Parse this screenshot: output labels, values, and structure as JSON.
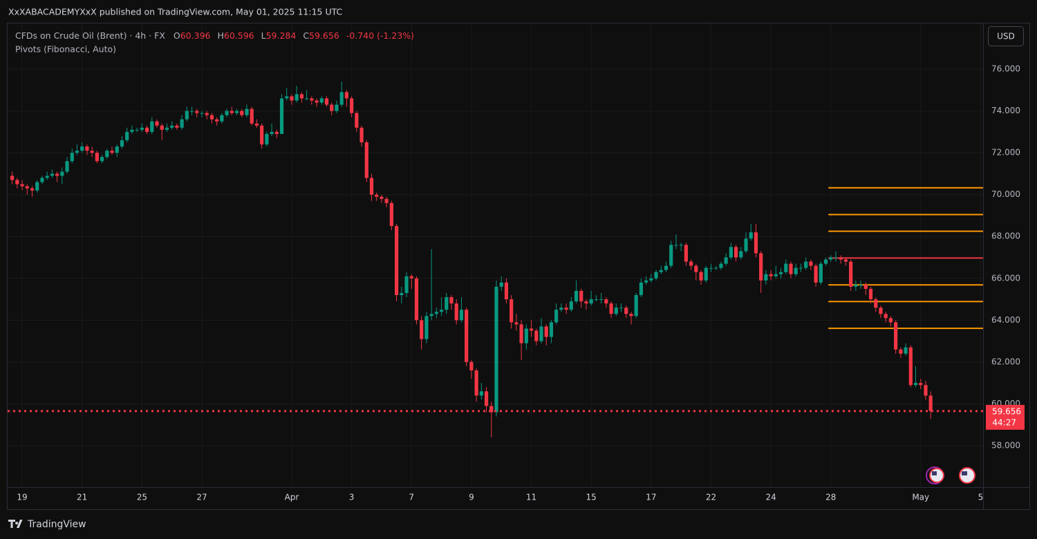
{
  "page": {
    "published": "XxXABACADEMYXxX published on TradingView.com, May 01, 2025 11:15 UTC",
    "brand": "TradingView",
    "currency_button": "USD"
  },
  "chart_data": {
    "type": "candlestick",
    "symbol": "CFDs on Crude Oil (Brent) · 4h · FX",
    "ohlc_labels": {
      "open": "O",
      "high": "H",
      "low": "L",
      "close": "C"
    },
    "change": "-0.740 (-1.23%)",
    "countdown": "44:27",
    "up_color": "#089981",
    "down_color": "#f23645",
    "grid": true,
    "ylim": [
      56.02,
      78.18
    ],
    "yticks": [
      {
        "value": 58,
        "label": "58.000"
      },
      {
        "value": 60,
        "label": "60.000"
      },
      {
        "value": 62,
        "label": "62.000"
      },
      {
        "value": 64,
        "label": "64.000"
      },
      {
        "value": 66,
        "label": "66.000"
      },
      {
        "value": 68,
        "label": "68.000"
      },
      {
        "value": 70,
        "label": "70.000"
      },
      {
        "value": 72,
        "label": "72.000"
      },
      {
        "value": 74,
        "label": "74.000"
      },
      {
        "value": 76,
        "label": "76.000"
      }
    ],
    "categories": [
      null,
      null,
      "19",
      null,
      null,
      null,
      null,
      null,
      null,
      null,
      null,
      null,
      null,
      null,
      "21",
      null,
      null,
      null,
      null,
      null,
      null,
      null,
      null,
      null,
      null,
      null,
      "25",
      null,
      null,
      null,
      null,
      null,
      null,
      null,
      null,
      null,
      null,
      null,
      "27",
      null,
      null,
      null,
      null,
      null,
      null,
      null,
      null,
      null,
      null,
      null,
      null,
      null,
      null,
      null,
      null,
      null,
      "Apr",
      null,
      null,
      null,
      null,
      null,
      null,
      null,
      null,
      null,
      null,
      null,
      "3",
      null,
      null,
      null,
      null,
      null,
      null,
      null,
      null,
      null,
      null,
      null,
      "7",
      null,
      null,
      null,
      null,
      null,
      null,
      null,
      null,
      null,
      null,
      null,
      "9",
      null,
      null,
      null,
      null,
      null,
      null,
      null,
      null,
      null,
      null,
      null,
      "11",
      null,
      null,
      null,
      null,
      null,
      null,
      null,
      null,
      null,
      null,
      null,
      "15",
      null,
      null,
      null,
      null,
      null,
      null,
      null,
      null,
      null,
      null,
      null,
      "17",
      null,
      null,
      null,
      null,
      null,
      null,
      null,
      null,
      null,
      null,
      null,
      "22",
      null,
      null,
      null,
      null,
      null,
      null,
      null,
      null,
      null,
      null,
      null,
      "24",
      null,
      null,
      null,
      null,
      null,
      null,
      null,
      null,
      null,
      null,
      null,
      "28",
      null,
      null,
      null,
      null,
      null,
      null,
      null,
      null,
      null,
      null,
      null,
      null,
      null,
      null,
      null,
      null,
      null,
      "May",
      null,
      null,
      null,
      null,
      null,
      null,
      null,
      null,
      null,
      null,
      null,
      "5"
    ],
    "open": [
      70.9,
      70.7,
      70.5,
      70.4,
      70.3,
      70.2,
      70.6,
      70.8,
      70.9,
      71.0,
      70.9,
      71.1,
      71.6,
      72.0,
      72.1,
      72.3,
      72.1,
      72.0,
      71.6,
      71.8,
      72.1,
      72.0,
      72.3,
      72.6,
      73.0,
      73.1,
      73.1,
      73.2,
      73.0,
      73.5,
      73.3,
      73.1,
      73.2,
      73.3,
      73.2,
      73.6,
      74.0,
      74.0,
      73.9,
      73.9,
      73.8,
      73.6,
      73.5,
      73.8,
      74.0,
      73.9,
      74.0,
      73.8,
      74.1,
      73.4,
      73.3,
      72.4,
      72.9,
      73.0,
      72.9,
      74.6,
      74.7,
      74.5,
      74.8,
      74.6,
      74.6,
      74.5,
      74.4,
      74.6,
      74.3,
      74.0,
      74.3,
      74.9,
      74.6,
      73.9,
      73.2,
      72.5,
      70.8,
      70.0,
      69.9,
      69.8,
      69.6,
      68.5,
      65.2,
      65.3,
      66.1,
      66.0,
      64.0,
      63.1,
      64.2,
      64.3,
      64.4,
      64.5,
      65.1,
      64.8,
      64.0,
      64.5,
      62.0,
      61.6,
      60.4,
      60.6,
      59.9,
      59.6,
      65.6,
      65.8,
      65.0,
      63.9,
      63.8,
      62.9,
      63.6,
      63.5,
      63.0,
      63.7,
      63.2,
      63.9,
      64.5,
      64.6,
      64.5,
      64.9,
      65.4,
      64.9,
      64.8,
      65.0,
      65.0,
      65.0,
      64.8,
      64.3,
      64.6,
      64.6,
      64.3,
      64.2,
      65.2,
      65.8,
      65.9,
      66.0,
      66.3,
      66.4,
      66.6,
      67.6,
      67.6,
      67.6,
      66.8,
      66.6,
      66.3,
      65.9,
      66.5,
      66.5,
      66.5,
      66.7,
      67.0,
      67.5,
      67.0,
      67.3,
      67.9,
      68.2,
      67.2,
      65.9,
      66.2,
      66.1,
      66.2,
      66.3,
      66.7,
      66.2,
      66.5,
      66.5,
      66.8,
      66.6,
      65.8,
      66.7,
      66.9,
      67.0,
      67.0,
      66.9,
      66.8,
      65.6,
      65.7,
      65.7,
      65.5,
      65.0,
      64.6,
      64.3,
      64.1,
      63.9,
      62.6,
      62.4,
      62.7,
      60.9,
      61.0,
      60.9,
      60.396,
      null,
      null,
      null,
      null,
      null,
      null,
      null,
      null,
      null,
      null
    ],
    "high": [
      71.1,
      70.8,
      70.7,
      70.5,
      70.4,
      70.7,
      70.9,
      71.1,
      71.2,
      71.1,
      71.3,
      71.8,
      72.2,
      72.4,
      72.5,
      72.4,
      72.3,
      72.1,
      71.9,
      72.2,
      72.3,
      72.4,
      72.8,
      73.2,
      73.3,
      73.2,
      73.4,
      73.3,
      73.7,
      73.6,
      73.4,
      73.4,
      73.5,
      73.4,
      73.8,
      74.2,
      74.2,
      74.1,
      74.0,
      74.0,
      73.9,
      73.7,
      73.9,
      74.1,
      74.2,
      74.1,
      74.1,
      74.3,
      74.2,
      73.6,
      73.4,
      73.0,
      73.4,
      73.1,
      74.8,
      75.1,
      74.8,
      75.2,
      74.9,
      75.0,
      74.7,
      74.6,
      74.7,
      74.7,
      74.4,
      74.5,
      75.4,
      75.0,
      74.7,
      74.0,
      73.3,
      72.6,
      71.0,
      70.1,
      70.0,
      69.9,
      69.7,
      68.6,
      65.6,
      66.3,
      66.2,
      66.1,
      64.2,
      64.4,
      67.4,
      64.6,
      65.1,
      65.3,
      65.2,
      65.0,
      65.1,
      64.6,
      62.1,
      61.7,
      61.0,
      60.8,
      60.1,
      65.9,
      66.1,
      66.0,
      65.2,
      64.3,
      64.0,
      63.8,
      64.0,
      63.6,
      64.1,
      63.8,
      64.0,
      64.8,
      64.8,
      64.8,
      65.1,
      65.9,
      65.5,
      65.0,
      65.4,
      65.2,
      65.3,
      65.1,
      64.9,
      64.8,
      64.8,
      64.7,
      64.4,
      65.3,
      66.0,
      66.1,
      66.2,
      66.4,
      66.6,
      66.8,
      67.8,
      68.1,
      67.7,
      67.7,
      66.9,
      66.7,
      66.4,
      66.6,
      66.7,
      66.6,
      66.8,
      67.2,
      67.7,
      67.6,
      67.5,
      68.2,
      68.6,
      68.6,
      67.3,
      66.4,
      66.4,
      66.6,
      66.5,
      66.9,
      66.8,
      66.7,
      66.7,
      67.0,
      66.9,
      66.7,
      66.8,
      67.0,
      67.1,
      67.3,
      67.1,
      67.0,
      66.9,
      65.9,
      65.9,
      65.8,
      65.6,
      65.1,
      64.7,
      64.4,
      64.2,
      64.0,
      62.7,
      62.9,
      62.8,
      61.8,
      61.2,
      61.1,
      60.596,
      null,
      null,
      null,
      null,
      null,
      null,
      null,
      null,
      null,
      null
    ],
    "low": [
      70.5,
      70.3,
      70.2,
      70.0,
      69.9,
      70.1,
      70.5,
      70.7,
      70.8,
      70.6,
      70.5,
      71.0,
      71.5,
      71.9,
      72.0,
      71.9,
      71.8,
      71.5,
      71.5,
      71.7,
      71.9,
      71.8,
      72.2,
      72.5,
      72.9,
      73.0,
      73.0,
      72.9,
      72.9,
      73.2,
      72.6,
      73.0,
      73.1,
      73.1,
      73.1,
      73.5,
      73.8,
      73.7,
      73.7,
      73.6,
      73.4,
      73.3,
      73.4,
      73.7,
      73.8,
      73.8,
      73.7,
      73.7,
      73.3,
      73.2,
      72.2,
      72.3,
      72.8,
      72.7,
      72.9,
      74.5,
      74.3,
      74.4,
      74.4,
      74.5,
      74.3,
      74.2,
      74.3,
      74.2,
      73.8,
      73.9,
      74.2,
      74.2,
      73.7,
      73.0,
      72.3,
      70.6,
      69.7,
      69.7,
      69.6,
      69.4,
      68.3,
      64.9,
      64.8,
      65.1,
      65.5,
      63.8,
      62.6,
      62.9,
      64.0,
      64.1,
      64.2,
      64.3,
      64.5,
      63.8,
      63.9,
      61.8,
      61.2,
      60.1,
      60.2,
      59.6,
      58.4,
      59.4,
      65.4,
      64.8,
      63.6,
      63.5,
      62.1,
      62.6,
      63.2,
      62.8,
      62.9,
      62.8,
      62.9,
      63.8,
      64.4,
      64.3,
      64.4,
      64.8,
      64.6,
      64.5,
      64.7,
      64.9,
      64.8,
      64.6,
      64.1,
      64.2,
      64.4,
      64.1,
      63.8,
      64.1,
      65.1,
      65.7,
      65.8,
      65.9,
      66.2,
      66.3,
      66.5,
      67.4,
      67.3,
      66.6,
      66.4,
      65.9,
      65.7,
      65.8,
      66.3,
      66.4,
      66.4,
      66.6,
      66.9,
      66.8,
      66.9,
      67.2,
      67.8,
      67.0,
      65.3,
      65.7,
      65.9,
      66.0,
      66.0,
      66.2,
      66.0,
      66.1,
      66.3,
      66.4,
      66.4,
      65.6,
      65.7,
      66.6,
      66.8,
      66.8,
      66.7,
      66.6,
      65.4,
      65.4,
      65.5,
      65.2,
      64.8,
      64.4,
      64.1,
      63.9,
      63.7,
      62.4,
      62.2,
      62.3,
      60.8,
      60.8,
      60.7,
      60.2,
      59.284,
      null,
      null,
      null,
      null,
      null,
      null,
      null,
      null,
      null,
      null
    ],
    "close": [
      70.7,
      70.5,
      70.4,
      70.3,
      70.2,
      70.6,
      70.8,
      70.9,
      71.0,
      70.9,
      71.1,
      71.6,
      72.0,
      72.1,
      72.3,
      72.1,
      72.0,
      71.6,
      71.8,
      72.1,
      72.0,
      72.3,
      72.6,
      73.0,
      73.1,
      73.1,
      73.2,
      73.0,
      73.5,
      73.3,
      73.1,
      73.2,
      73.3,
      73.2,
      73.6,
      74.0,
      74.0,
      73.9,
      73.9,
      73.8,
      73.6,
      73.5,
      73.8,
      74.0,
      73.9,
      74.0,
      73.8,
      74.1,
      73.4,
      73.3,
      72.4,
      72.9,
      73.0,
      72.9,
      74.6,
      74.7,
      74.5,
      74.8,
      74.6,
      74.6,
      74.5,
      74.4,
      74.6,
      74.3,
      74.0,
      74.3,
      74.9,
      74.6,
      73.9,
      73.2,
      72.5,
      70.8,
      70.0,
      69.9,
      69.8,
      69.6,
      68.5,
      65.2,
      65.3,
      66.1,
      66.0,
      64.0,
      63.1,
      64.2,
      64.3,
      64.4,
      64.5,
      65.1,
      64.8,
      64.0,
      64.5,
      62.0,
      61.6,
      60.4,
      60.6,
      59.9,
      59.6,
      65.6,
      65.8,
      65.0,
      63.9,
      63.8,
      62.9,
      63.6,
      63.5,
      63.0,
      63.7,
      63.2,
      63.9,
      64.5,
      64.6,
      64.5,
      64.9,
      65.4,
      64.9,
      64.8,
      65.0,
      65.0,
      65.0,
      64.8,
      64.3,
      64.6,
      64.6,
      64.3,
      64.2,
      65.2,
      65.8,
      65.9,
      66.0,
      66.3,
      66.4,
      66.6,
      67.6,
      67.6,
      67.6,
      66.8,
      66.6,
      66.3,
      65.9,
      66.5,
      66.5,
      66.5,
      66.7,
      67.0,
      67.5,
      67.0,
      67.3,
      67.9,
      68.2,
      67.2,
      65.9,
      66.2,
      66.1,
      66.2,
      66.3,
      66.7,
      66.2,
      66.5,
      66.5,
      66.8,
      66.6,
      65.8,
      66.7,
      66.9,
      67.0,
      67.0,
      66.9,
      66.8,
      65.6,
      65.7,
      65.7,
      65.5,
      65.0,
      64.6,
      64.3,
      64.1,
      63.9,
      62.6,
      62.4,
      62.7,
      60.9,
      61.0,
      60.9,
      60.396,
      59.656,
      null,
      null,
      null,
      null,
      null,
      null,
      null,
      null,
      null,
      null
    ],
    "pivots": {
      "name": "Pivots (Fibonacci, Auto)",
      "start": 164,
      "levels": [
        70.33,
        69.05,
        68.25,
        66.97,
        65.69,
        64.89,
        63.61
      ],
      "colors": [
        "#ff9800",
        "#ff9800",
        "#ff9800",
        "#f23645",
        "#ff9800",
        "#ff9800",
        "#ff9800"
      ]
    }
  }
}
